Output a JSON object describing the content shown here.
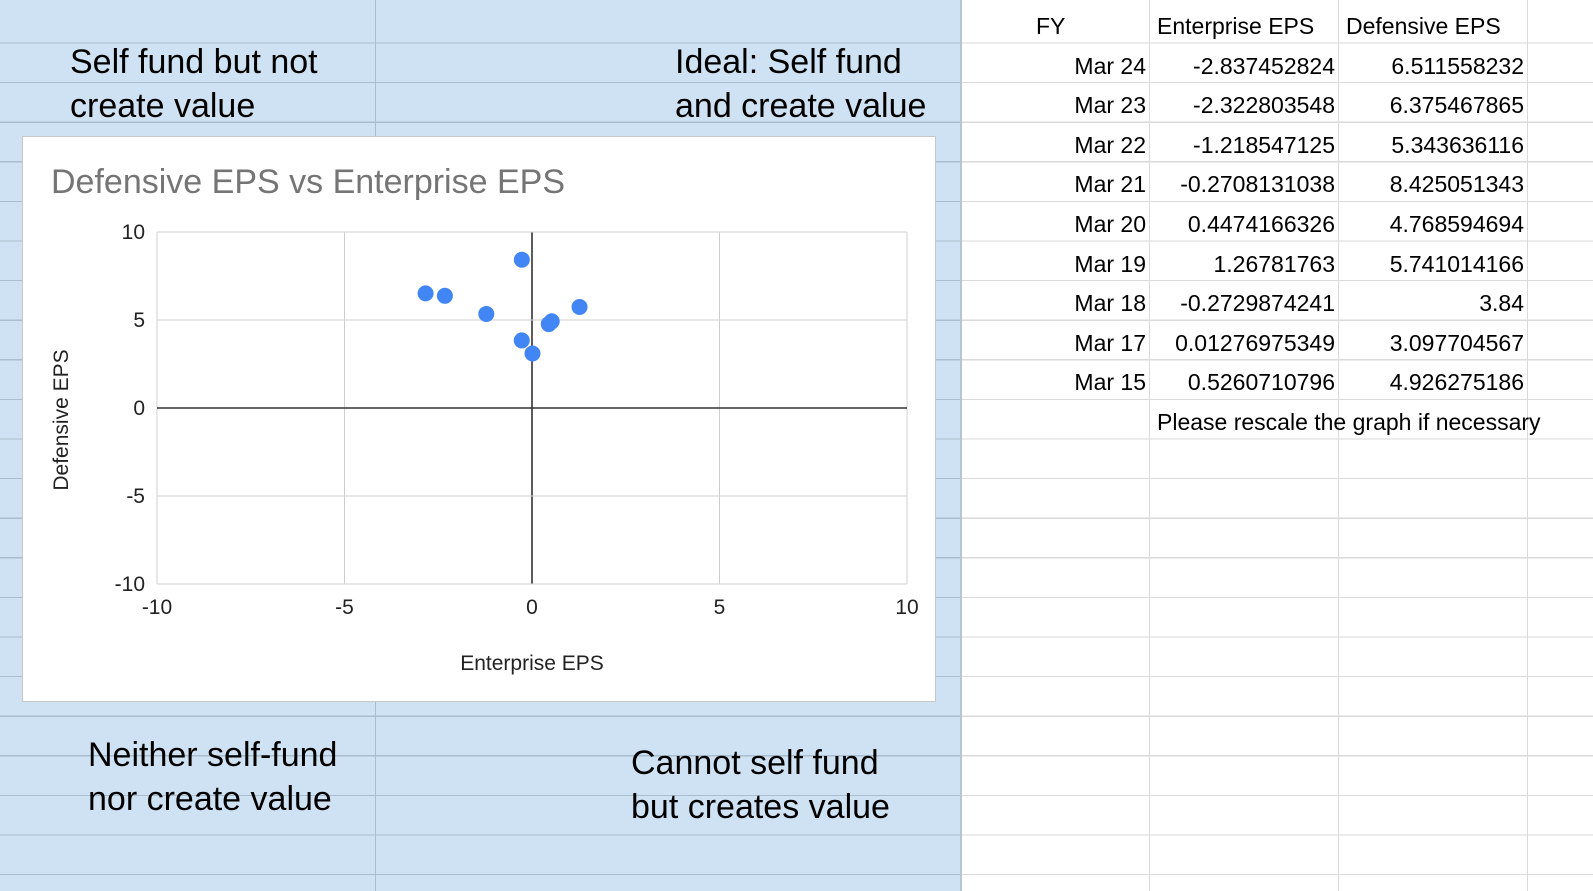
{
  "quadrants": {
    "top_left": "Self fund but not\ncreate value",
    "top_right": "Ideal: Self fund\nand create value",
    "bottom_left": "Neither self-fund\nnor create value",
    "bottom_right": "Cannot self fund\nbut creates value"
  },
  "table": {
    "headers": [
      "FY",
      "Enterprise EPS",
      "Defensive EPS"
    ],
    "rows": [
      [
        "Mar 24",
        "-2.837452824",
        "6.511558232"
      ],
      [
        "Mar 23",
        "-2.322803548",
        "6.375467865"
      ],
      [
        "Mar 22",
        "-1.218547125",
        "5.343636116"
      ],
      [
        "Mar 21",
        "-0.2708131038",
        "8.425051343"
      ],
      [
        "Mar 20",
        "0.4474166326",
        "4.768594694"
      ],
      [
        "Mar 19",
        "1.26781763",
        "5.741014166"
      ],
      [
        "Mar 18",
        "-0.2729874241",
        "3.84"
      ],
      [
        "Mar 17",
        "0.01276975349",
        "3.097704567"
      ],
      [
        "Mar 15",
        "0.5260710796",
        "4.926275186"
      ]
    ],
    "note": "Please rescale the graph if necessary"
  },
  "chart_data": {
    "type": "scatter",
    "title": "Defensive EPS vs Enterprise EPS",
    "xlabel": "Enterprise EPS",
    "ylabel": "Defensive EPS",
    "xlim": [
      -10,
      10
    ],
    "ylim": [
      -10,
      10
    ],
    "xticks": [
      "-10",
      "-5",
      "0",
      "5",
      "10"
    ],
    "yticks": [
      "10",
      "5",
      "0",
      "-5",
      "-10"
    ],
    "grid": true,
    "legend": "none",
    "point_color": "#4285f4",
    "series": [
      {
        "points": [
          [
            -2.837452824,
            6.511558232
          ],
          [
            -2.322803548,
            6.375467865
          ],
          [
            -1.218547125,
            5.343636116
          ],
          [
            -0.2708131038,
            8.425051343
          ],
          [
            0.4474166326,
            4.768594694
          ],
          [
            1.26781763,
            5.741014166
          ],
          [
            -0.2729874241,
            3.84
          ],
          [
            0.01276975349,
            3.097704567
          ],
          [
            0.5260710796,
            4.926275186
          ]
        ]
      }
    ]
  }
}
